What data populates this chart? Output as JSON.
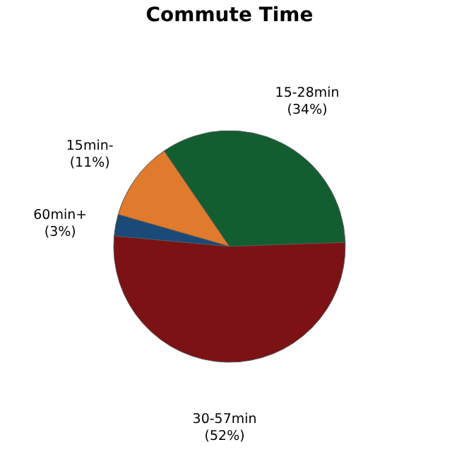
{
  "chart_data": {
    "type": "pie",
    "title": "Commute Time",
    "categories": [
      "15-28min",
      "30-57min",
      "60min+",
      "15min-"
    ],
    "values": [
      34,
      52,
      3,
      11
    ],
    "value_labels": [
      "(34%)",
      "(52%)",
      "(3%)",
      "(11%)"
    ],
    "colors": [
      "#135e30",
      "#7d1215",
      "#1b4a78",
      "#e07a2c"
    ]
  }
}
